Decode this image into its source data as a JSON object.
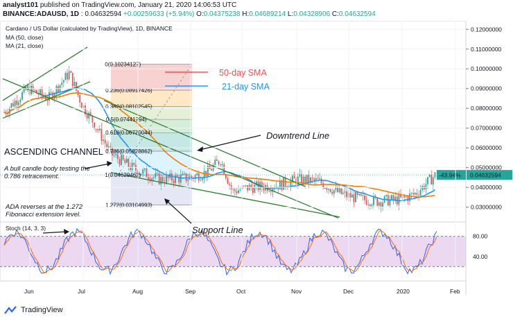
{
  "header": {
    "publisher": "analyst101",
    "published_text": " published on TradingView.com, January 21, 2020 14:06:53 UTC",
    "symbol": "BINANCE:ADAUSD, 1D",
    "last": "0.04632594",
    "change": "+0.00259633 (+5.94%)",
    "o_label": "O:",
    "o": "0.04375238",
    "h_label": "H:",
    "h": "0.04689214",
    "l_label": "L:",
    "l": "0.04328906",
    "c_label": "C:",
    "c": "0.04632594"
  },
  "legend": {
    "title": "Cardano / US Dollar (calculated by TradingView), 1D, BINANCE",
    "ma50": "MA (50, close)",
    "ma21": "MA (21, close)"
  },
  "sma_legend": {
    "sma50": "50-day SMA",
    "sma21": "21-day SMA"
  },
  "annotations": {
    "downtrend": "Downtrend Line",
    "ascending": "ASCENDING CHANNEL",
    "bull_candle_1": "A bull candle body testing the",
    "bull_candle_2": "0.786 retracement.",
    "reverse_1": "ADA reverses at the 1.272",
    "reverse_2": "Fibonacci extension level.",
    "support": "Support Line"
  },
  "fib_levels": [
    {
      "ratio": "0",
      "label": "0(0.10234127)",
      "value": 0.10234127
    },
    {
      "ratio": "0.236",
      "label": "0.236(0.08917426)",
      "value": 0.08917426
    },
    {
      "ratio": "0.382",
      "label": "0.382(0.08102545)",
      "value": 0.08102545
    },
    {
      "ratio": "0.5",
      "label": "0.5(0.07441794)",
      "value": 0.07441794
    },
    {
      "ratio": "0.618",
      "label": "0.618(0.06770044)",
      "value": 0.06770044
    },
    {
      "ratio": "0.786",
      "label": "0.786(0.05828862)",
      "value": 0.05828862
    },
    {
      "ratio": "1",
      "label": "1(0.04629462)",
      "value": 0.04629462
    },
    {
      "ratio": "1.272",
      "label": "1.272(0.03104993)",
      "value": 0.03104993
    }
  ],
  "price_axis": {
    "ticks": [
      "0.12000000",
      "0.11000000",
      "0.10000000",
      "0.09000000",
      "0.08000000",
      "0.07000000",
      "0.06000000",
      "0.05000000",
      "0.04000000",
      "0.03000000"
    ],
    "tick_values": [
      0.12,
      0.11,
      0.1,
      0.09,
      0.08,
      0.07,
      0.06,
      0.05,
      0.04,
      0.03
    ],
    "current_price": "0.04632594",
    "current_price_value": 0.04632594,
    "pct_label": "-43.94%"
  },
  "stoch": {
    "title": "Stoch (14, 3, 3)",
    "ticks": [
      "80.00",
      "40.00"
    ],
    "tick_values": [
      80,
      40
    ]
  },
  "time_axis": {
    "labels": [
      "Jun",
      "Jul",
      "Aug",
      "Sep",
      "Oct",
      "Nov",
      "Dec",
      "2020",
      "Feb"
    ]
  },
  "colors": {
    "up": "#26a69a",
    "down": "#ef5350",
    "sma50": "#f57c00",
    "sma21": "#2196f3",
    "stoch_k": "#2962ff",
    "stoch_d": "#ff6d00",
    "stoch_band": "#e1bee7",
    "trend": "#2e7d32"
  },
  "footer": {
    "brand": "TradingView"
  }
}
